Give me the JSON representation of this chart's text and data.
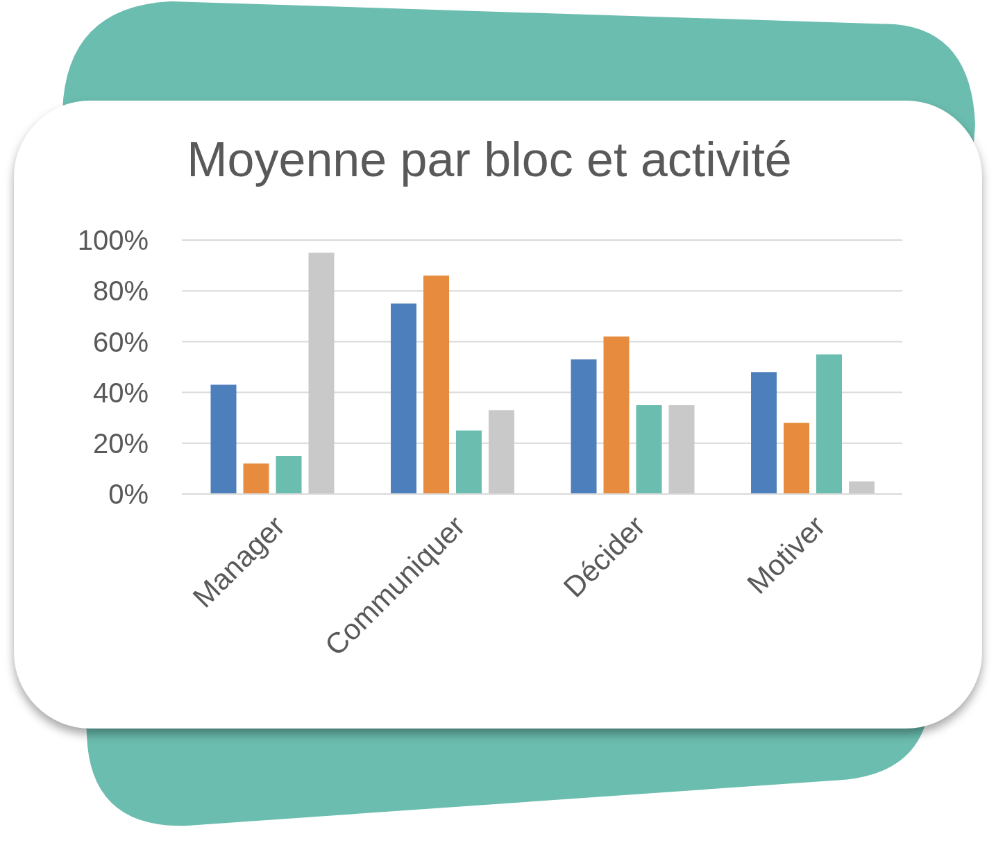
{
  "chart_data": {
    "type": "bar",
    "title": "Moyenne par bloc et activité",
    "categories": [
      "Manager",
      "Communiquer",
      "Décider",
      "Motiver"
    ],
    "series": [
      {
        "color": "#4e7fbd",
        "values": [
          43,
          75,
          53,
          48
        ]
      },
      {
        "color": "#e78c3f",
        "values": [
          12,
          86,
          62,
          28
        ]
      },
      {
        "color": "#6bbdaf",
        "values": [
          15,
          25,
          35,
          55
        ]
      },
      {
        "color": "#c9c9c9",
        "values": [
          95,
          33,
          35,
          5
        ]
      }
    ],
    "ylim": [
      0,
      100
    ],
    "yticks": [
      {
        "value": 0,
        "label": "0%"
      },
      {
        "value": 20,
        "label": "20%"
      },
      {
        "value": 40,
        "label": "40%"
      },
      {
        "value": 60,
        "label": "60%"
      },
      {
        "value": 80,
        "label": "80%"
      },
      {
        "value": 100,
        "label": "100%"
      }
    ],
    "grid": "y"
  }
}
